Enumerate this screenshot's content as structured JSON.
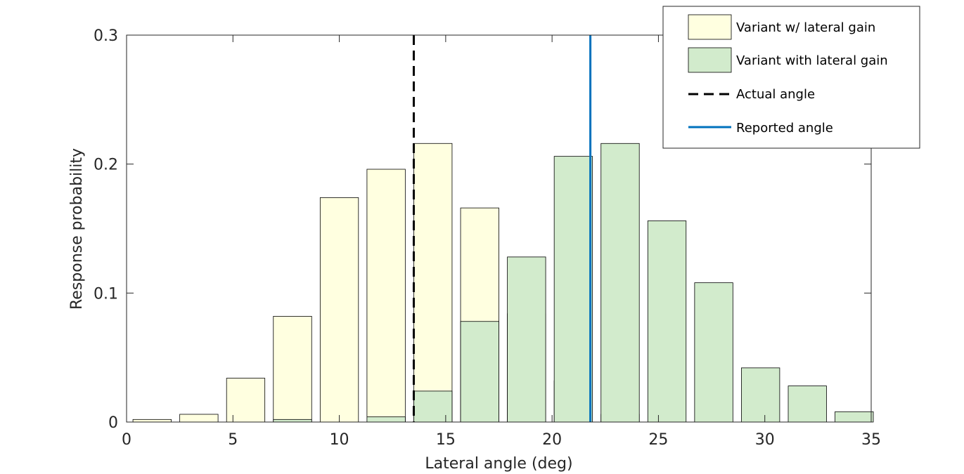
{
  "chart_data": {
    "type": "bar",
    "title": "",
    "xlabel": "Lateral angle (deg)",
    "ylabel": "Response probability",
    "xlim": [
      0,
      35
    ],
    "ylim": [
      0,
      0.3
    ],
    "xticks": [
      0,
      5,
      10,
      15,
      20,
      25,
      30,
      35
    ],
    "yticks": [
      0,
      0.1,
      0.2,
      0.3
    ],
    "ytick_labels": [
      "0",
      "0.1",
      "0.2",
      "0.3"
    ],
    "grid": false,
    "legend_position": "top-right",
    "bar_width_deg": 1.8,
    "x": [
      1.2,
      3.4,
      5.6,
      7.8,
      10.0,
      12.2,
      14.4,
      16.6,
      18.8,
      21.0,
      23.2,
      25.4,
      27.6,
      29.8,
      32.0,
      34.2
    ],
    "series": [
      {
        "name": "Variant w/ lateral gain",
        "color": "#FFFFE0",
        "values": [
          0.002,
          0.006,
          0.034,
          0.082,
          0.174,
          0.196,
          0.216,
          0.166,
          0.084,
          0.032,
          0.006,
          0,
          0,
          0,
          0,
          0
        ]
      },
      {
        "name": "Variant with lateral gain",
        "color": "#D2EBCC",
        "values": [
          0,
          0,
          0,
          0.002,
          0,
          0.004,
          0.024,
          0.078,
          0.128,
          0.206,
          0.216,
          0.156,
          0.108,
          0.042,
          0.028,
          0.008
        ]
      }
    ],
    "reference_lines": [
      {
        "name": "Actual angle",
        "x": 13.5,
        "style": "dashed",
        "color": "#000000"
      },
      {
        "name": "Reported angle",
        "x": 21.8,
        "style": "solid",
        "color": "#0072BD"
      }
    ]
  }
}
